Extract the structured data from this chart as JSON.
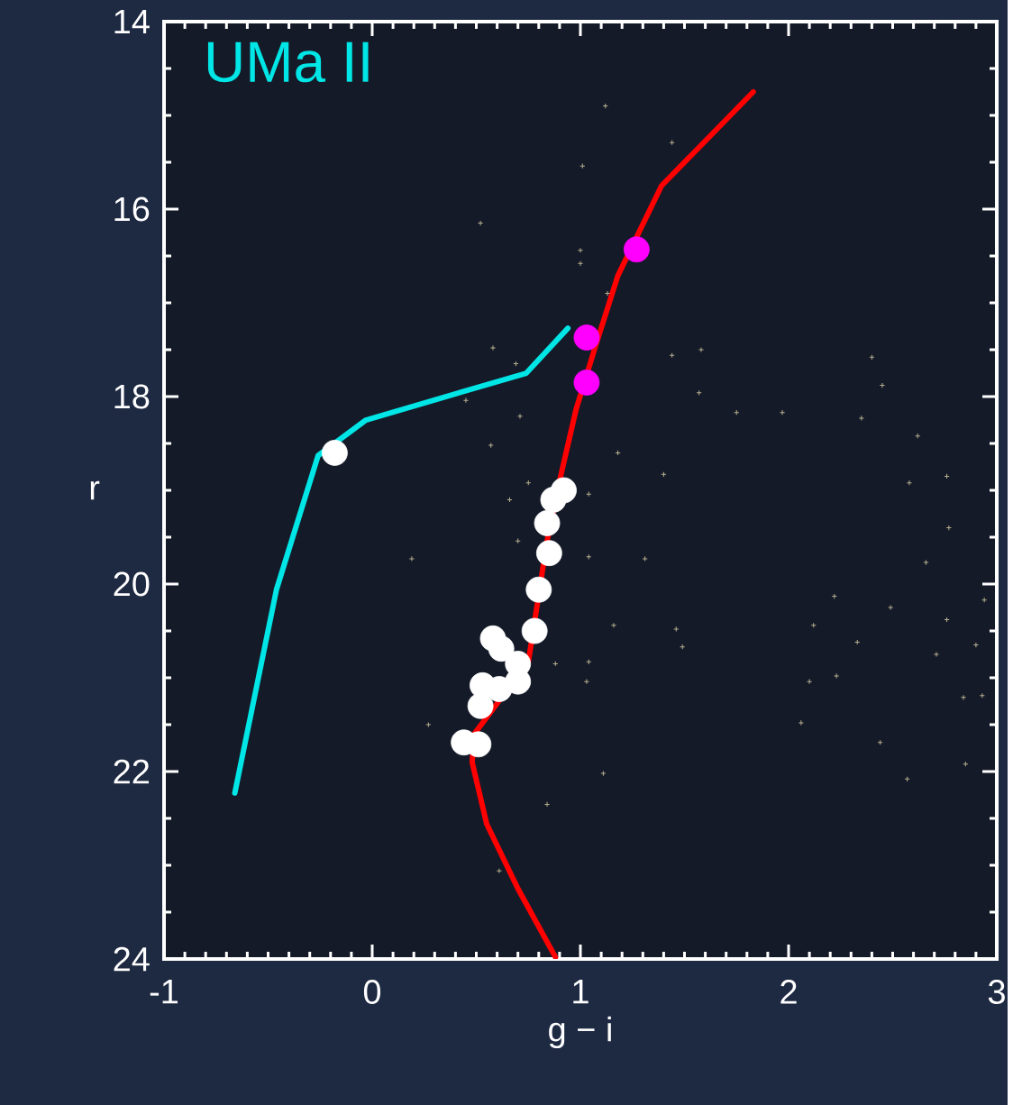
{
  "chart_data": {
    "type": "scatter",
    "xlabel": "g − i",
    "ylabel": "r",
    "annotations": [
      "UMa II"
    ],
    "xlim": [
      -1,
      3
    ],
    "ylim": [
      24,
      14
    ],
    "xticks": [
      -1,
      0,
      1,
      2,
      3
    ],
    "yticks": [
      14,
      16,
      18,
      20,
      22,
      24
    ],
    "series": [
      {
        "type": "line",
        "color": "#ff0000",
        "marker": "none",
        "x": [
          1.83,
          1.39,
          1.18,
          1.07,
          0.98,
          0.9,
          0.84,
          0.75,
          0.49,
          0.48,
          0.55,
          0.7,
          0.88
        ],
        "values": [
          14.75,
          15.75,
          16.71,
          17.48,
          18.13,
          18.9,
          19.54,
          20.83,
          21.6,
          21.9,
          22.56,
          23.25,
          23.98
        ]
      },
      {
        "type": "line",
        "color": "#00e5e5",
        "marker": "none",
        "x": [
          0.94,
          0.74,
          -0.03,
          -0.26,
          -0.46,
          -0.66
        ],
        "values": [
          17.27,
          17.75,
          18.25,
          18.63,
          20.06,
          22.23
        ]
      },
      {
        "color": "#b8b090",
        "marker": "cross",
        "x": [
          1.12,
          1.44,
          1.01,
          0.52,
          1.0,
          1.0,
          1.13,
          0.58,
          1.44,
          1.58,
          0.69,
          2.4,
          2.45,
          1.57,
          1.75,
          1.97,
          0.45,
          0.71,
          2.35,
          2.62,
          0.57,
          1.18,
          1.4,
          2.58,
          2.76,
          0.75,
          0.66,
          1.04,
          2.77,
          0.19,
          1.04,
          1.31,
          2.66,
          0.7,
          2.22,
          2.49,
          2.94,
          1.16,
          1.46,
          2.12,
          2.76,
          1.49,
          2.33,
          2.9,
          0.88,
          1.04,
          2.71,
          2.1,
          2.23,
          1.03,
          2.84,
          2.93,
          0.27,
          2.06,
          2.44,
          2.85,
          1.11,
          2.57,
          0.84,
          0.61
        ],
        "values": [
          14.9,
          15.29,
          15.54,
          16.15,
          16.44,
          16.58,
          16.9,
          17.48,
          17.56,
          17.5,
          17.65,
          17.58,
          17.88,
          17.96,
          18.17,
          18.17,
          18.04,
          18.21,
          18.23,
          18.42,
          18.52,
          18.6,
          18.83,
          18.92,
          18.85,
          18.92,
          19.1,
          19.04,
          19.4,
          19.73,
          19.71,
          19.73,
          19.77,
          19.54,
          20.13,
          20.25,
          20.17,
          20.44,
          20.48,
          20.44,
          20.38,
          20.67,
          20.62,
          20.65,
          20.85,
          20.83,
          20.75,
          21.04,
          20.98,
          21.04,
          21.21,
          21.19,
          21.5,
          21.48,
          21.69,
          21.92,
          22.02,
          22.08,
          22.35,
          23.06
        ]
      },
      {
        "color": "#ffffff",
        "marker": "circle",
        "x": [
          -0.18,
          0.92,
          0.87,
          0.84,
          0.85,
          0.8,
          0.78,
          0.58,
          0.62,
          0.7,
          0.7,
          0.61,
          0.53,
          0.52,
          0.44,
          0.51
        ],
        "values": [
          18.6,
          19.0,
          19.1,
          19.35,
          19.67,
          20.06,
          20.5,
          20.58,
          20.69,
          20.85,
          21.04,
          21.12,
          21.08,
          21.3,
          21.69,
          21.71
        ]
      },
      {
        "color": "#ff00ff",
        "marker": "circle",
        "x": [
          1.27,
          1.03,
          1.03
        ],
        "values": [
          16.43,
          17.37,
          17.85
        ]
      }
    ]
  }
}
